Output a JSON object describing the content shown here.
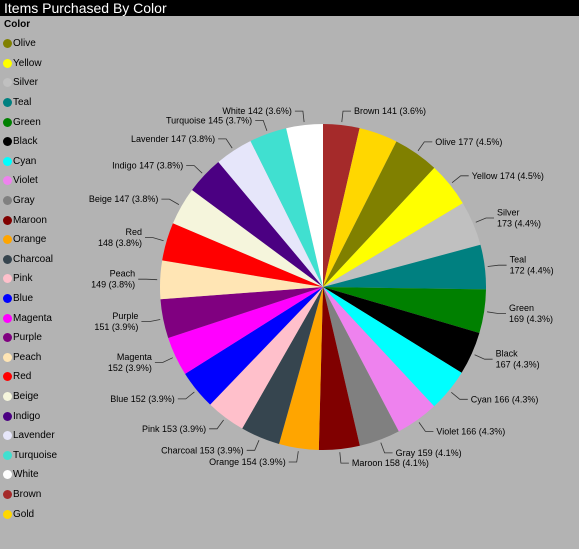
{
  "title": "Items Purchased By Color",
  "legend_title": "Color",
  "chart_data": {
    "type": "pie",
    "title": "Items Purchased By Color",
    "legend_title": "Color",
    "legend_placement": "left",
    "slices": [
      {
        "name": "Brown",
        "value": 141,
        "pct": "3.6%",
        "color": "#a52a2a",
        "label": "Brown 141 (3.6%)"
      },
      {
        "name": "Gold",
        "value": 150,
        "pct": "3.8%",
        "color": "#ffd700",
        "label": ""
      },
      {
        "name": "Olive",
        "value": 177,
        "pct": "4.5%",
        "color": "#808000",
        "label": "Olive 177 (4.5%)"
      },
      {
        "name": "Yellow",
        "value": 174,
        "pct": "4.5%",
        "color": "#ffff00",
        "label": "Yellow 174 (4.5%)"
      },
      {
        "name": "Silver",
        "value": 173,
        "pct": "4.4%",
        "color": "#c0c0c0",
        "label": "Silver\n173 (4.4%)"
      },
      {
        "name": "Teal",
        "value": 172,
        "pct": "4.4%",
        "color": "#008080",
        "label": "Teal\n172 (4.4%)"
      },
      {
        "name": "Green",
        "value": 169,
        "pct": "4.3%",
        "color": "#008000",
        "label": "Green\n169 (4.3%)"
      },
      {
        "name": "Black",
        "value": 167,
        "pct": "4.3%",
        "color": "#000000",
        "label": "Black\n167 (4.3%)"
      },
      {
        "name": "Cyan",
        "value": 166,
        "pct": "4.3%",
        "color": "#00ffff",
        "label": "Cyan 166 (4.3%)"
      },
      {
        "name": "Violet",
        "value": 166,
        "pct": "4.3%",
        "color": "#ee82ee",
        "label": "Violet 166 (4.3%)"
      },
      {
        "name": "Gray",
        "value": 159,
        "pct": "4.1%",
        "color": "#808080",
        "label": "Gray 159 (4.1%)"
      },
      {
        "name": "Maroon",
        "value": 158,
        "pct": "4.1%",
        "color": "#800000",
        "label": "Maroon 158 (4.1%)"
      },
      {
        "name": "Orange",
        "value": 154,
        "pct": "3.9%",
        "color": "#ffa500",
        "label": "Orange 154 (3.9%)"
      },
      {
        "name": "Charcoal",
        "value": 153,
        "pct": "3.9%",
        "color": "#36454f",
        "label": "Charcoal 153 (3.9%)"
      },
      {
        "name": "Pink",
        "value": 153,
        "pct": "3.9%",
        "color": "#ffc0cb",
        "label": "Pink 153 (3.9%)"
      },
      {
        "name": "Blue",
        "value": 152,
        "pct": "3.9%",
        "color": "#0000ff",
        "label": "Blue 152 (3.9%)"
      },
      {
        "name": "Magenta",
        "value": 152,
        "pct": "3.9%",
        "color": "#ff00ff",
        "label": "Magenta\n152 (3.9%)"
      },
      {
        "name": "Purple",
        "value": 151,
        "pct": "3.9%",
        "color": "#800080",
        "label": "Purple\n151 (3.9%)"
      },
      {
        "name": "Peach",
        "value": 149,
        "pct": "3.8%",
        "color": "#ffe5b4",
        "label": "Peach\n149 (3.8%)"
      },
      {
        "name": "Red",
        "value": 148,
        "pct": "3.8%",
        "color": "#ff0000",
        "label": "Red\n148 (3.8%)"
      },
      {
        "name": "Beige",
        "value": 147,
        "pct": "3.8%",
        "color": "#f5f5dc",
        "label": "Beige 147 (3.8%)"
      },
      {
        "name": "Indigo",
        "value": 147,
        "pct": "3.8%",
        "color": "#4b0082",
        "label": "Indigo 147 (3.8%)"
      },
      {
        "name": "Lavender",
        "value": 147,
        "pct": "3.8%",
        "color": "#e6e6fa",
        "label": "Lavender 147 (3.8%)"
      },
      {
        "name": "Turquoise",
        "value": 145,
        "pct": "3.7%",
        "color": "#40e0d0",
        "label": "Turquoise 145 (3.7%)"
      },
      {
        "name": "White",
        "value": 142,
        "pct": "3.6%",
        "color": "#ffffff",
        "label": "White 142 (3.6%)"
      }
    ],
    "legend_order": [
      "Olive",
      "Yellow",
      "Silver",
      "Teal",
      "Green",
      "Black",
      "Cyan",
      "Violet",
      "Gray",
      "Maroon",
      "Orange",
      "Charcoal",
      "Pink",
      "Blue",
      "Magenta",
      "Purple",
      "Peach",
      "Red",
      "Beige",
      "Indigo",
      "Lavender",
      "Turquoise",
      "White",
      "Brown",
      "Gold"
    ]
  }
}
